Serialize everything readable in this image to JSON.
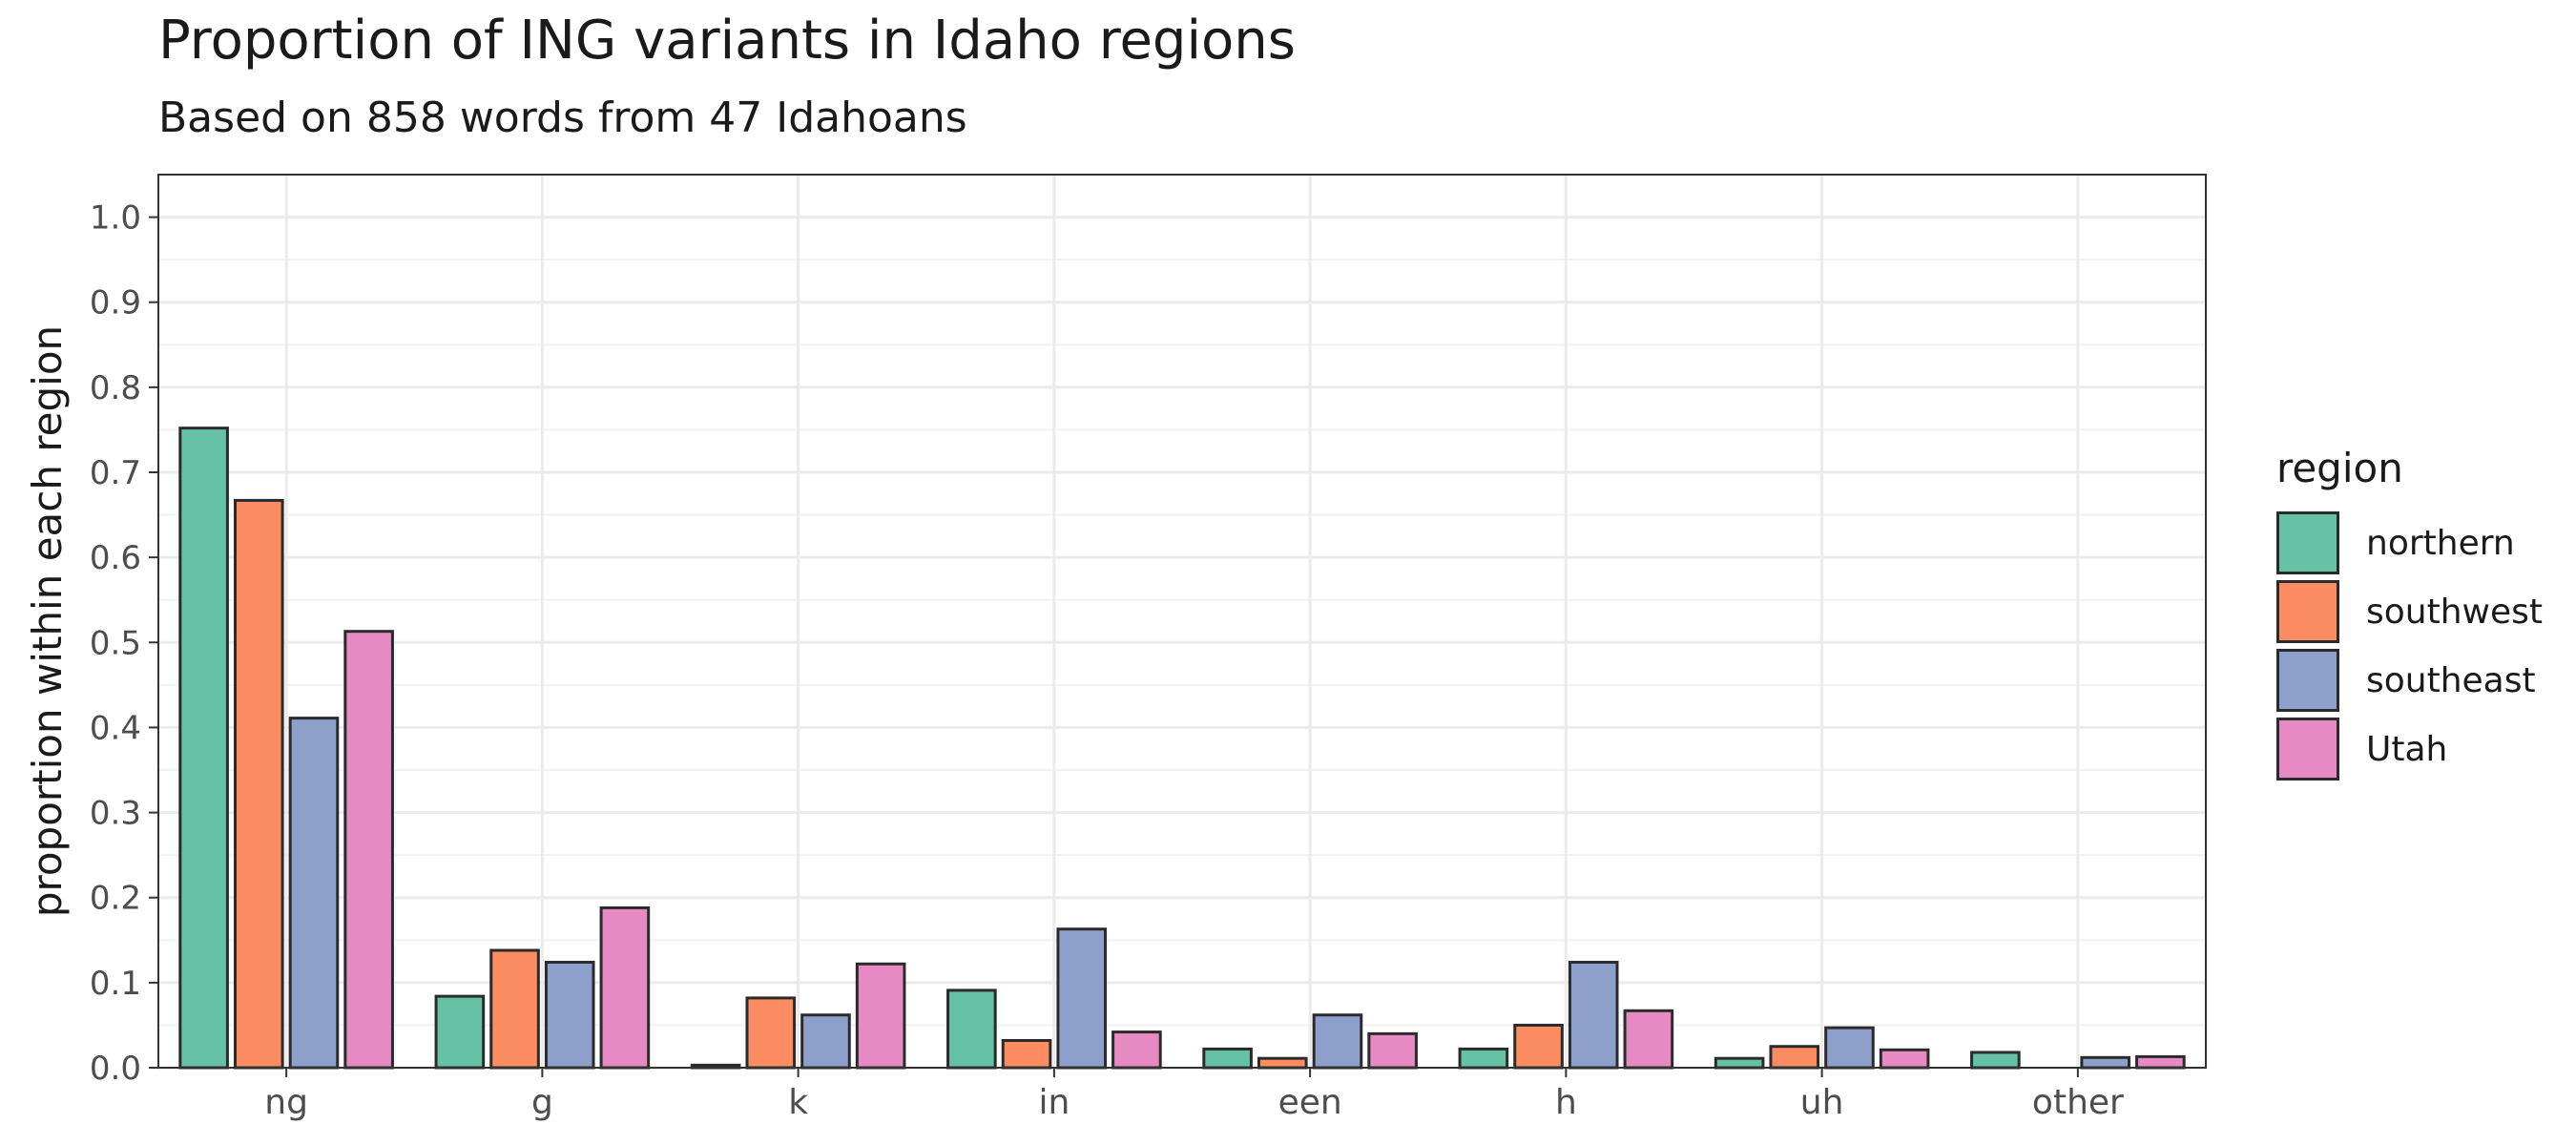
{
  "chart_data": {
    "type": "bar",
    "title": "Proportion of ING variants in Idaho regions",
    "subtitle": "Based on 858 words from 47 Idahoans",
    "xlabel": "",
    "ylabel": "proportion within each region",
    "ylim": [
      0,
      1.05
    ],
    "yticks": [
      "0.0",
      "0.1",
      "0.2",
      "0.3",
      "0.4",
      "0.5",
      "0.6",
      "0.7",
      "0.8",
      "0.9",
      "1.0"
    ],
    "grid": true,
    "legend_position": "right",
    "legend_title": "region",
    "categories": [
      "ng",
      "g",
      "k",
      "in",
      "een",
      "h",
      "uh",
      "other"
    ],
    "series": [
      {
        "name": "northern",
        "color": "#66C2A5",
        "values": [
          0.752,
          0.084,
          0.003,
          0.091,
          0.022,
          0.022,
          0.011,
          0.018
        ]
      },
      {
        "name": "southwest",
        "color": "#FC8D62",
        "values": [
          0.667,
          0.138,
          0.082,
          0.032,
          0.011,
          0.05,
          0.025,
          0.0
        ]
      },
      {
        "name": "southeast",
        "color": "#8DA0CB",
        "values": [
          0.411,
          0.124,
          0.062,
          0.163,
          0.062,
          0.124,
          0.047,
          0.012
        ]
      },
      {
        "name": "Utah",
        "color": "#E78AC3",
        "values": [
          0.513,
          0.188,
          0.122,
          0.042,
          0.04,
          0.067,
          0.021,
          0.013
        ]
      }
    ]
  }
}
